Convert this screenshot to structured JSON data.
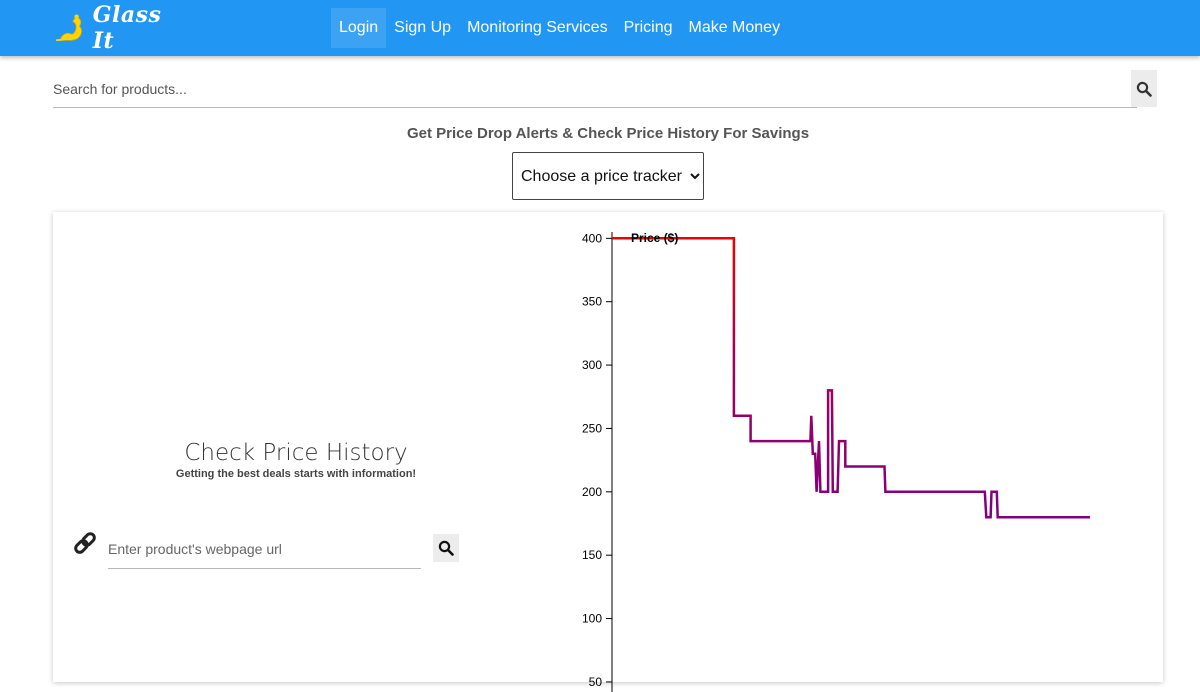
{
  "navbar": {
    "logo_text": "Glass It",
    "links": [
      {
        "label": "Login",
        "active": true
      },
      {
        "label": "Sign Up",
        "active": false
      },
      {
        "label": "Monitoring Services",
        "active": false
      },
      {
        "label": "Pricing",
        "active": false
      },
      {
        "label": "Make Money",
        "active": false
      }
    ],
    "background_color": "#2196f3"
  },
  "search": {
    "placeholder": "Search for products...",
    "value": "",
    "icon": "search-icon"
  },
  "tagline": "Get Price Drop Alerts & Check Price History For Savings",
  "tracker_select": {
    "selected": "Choose a price tracker"
  },
  "history_panel": {
    "title": "Check Price History",
    "subtitle": "Getting the best deals starts with information!",
    "link_icon": "link-icon",
    "url_placeholder": "Enter product's webpage url",
    "url_value": "",
    "submit_icon": "search-icon"
  },
  "chart_data": {
    "type": "line",
    "ylabel": "Price ($)",
    "y_ticks": [
      400,
      350,
      300,
      250,
      200,
      150,
      100,
      50
    ],
    "ylim": [
      46,
      405
    ],
    "xlim": [
      0,
      100
    ],
    "grid": false,
    "colors": {
      "high": "#ee0000",
      "low": "#800080"
    },
    "series": [
      {
        "values": [
          [
            0,
            400
          ],
          [
            25.5,
            400
          ],
          [
            25.5,
            260
          ],
          [
            29,
            260
          ],
          [
            29,
            240
          ],
          [
            41.5,
            240
          ],
          [
            41.7,
            260
          ],
          [
            42,
            230
          ],
          [
            42.5,
            230
          ],
          [
            42.8,
            200
          ],
          [
            43.3,
            240
          ],
          [
            43.6,
            200
          ],
          [
            45.2,
            200
          ],
          [
            45.2,
            280
          ],
          [
            46,
            280
          ],
          [
            46.2,
            200
          ],
          [
            47.2,
            200
          ],
          [
            47.5,
            240
          ],
          [
            48.8,
            240
          ],
          [
            48.8,
            220
          ],
          [
            57,
            220
          ],
          [
            57.2,
            200
          ],
          [
            78,
            200
          ],
          [
            78.3,
            180
          ],
          [
            79.2,
            180
          ],
          [
            79.4,
            200
          ],
          [
            80.5,
            200
          ],
          [
            80.7,
            180
          ],
          [
            100,
            180
          ]
        ]
      }
    ]
  }
}
